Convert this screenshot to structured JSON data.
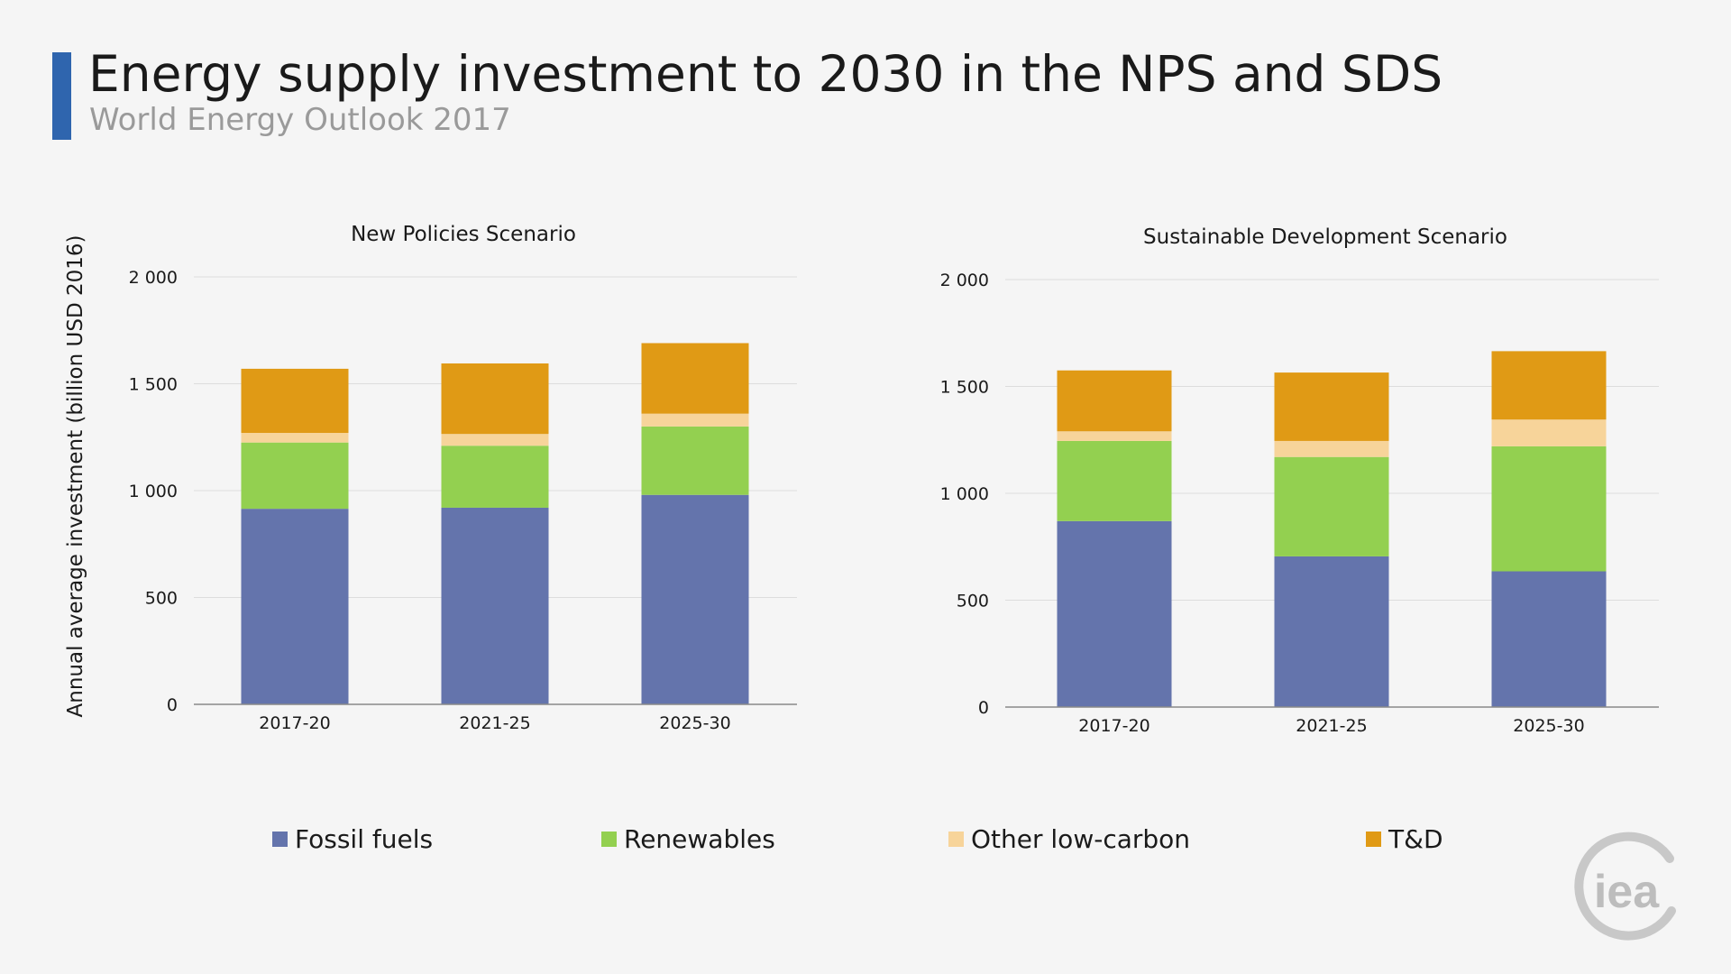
{
  "header": {
    "title": "Energy supply investment to 2030 in the NPS and SDS",
    "subtitle": "World Energy Outlook 2017"
  },
  "ylabel": "Annual average investment (billion USD 2016)",
  "colors": {
    "fossil": "#6474ac",
    "renewables": "#93d050",
    "other": "#f7d49a",
    "td": "#e09a15",
    "accent": "#2f65ae"
  },
  "legend": [
    {
      "label": "Fossil fuels",
      "color": "#6474ac"
    },
    {
      "label": "Renewables",
      "color": "#93d050"
    },
    {
      "label": "Other low-carbon",
      "color": "#f7d49a"
    },
    {
      "label": "T&D",
      "color": "#e09a15"
    }
  ],
  "logo": {
    "text": "iea",
    "icon": "iea-logo-icon"
  },
  "chart_data": [
    {
      "type": "bar",
      "stacked": true,
      "title": "New Policies Scenario",
      "categories": [
        "2017-20",
        "2021-25",
        "2025-30"
      ],
      "ylim": [
        0,
        2000
      ],
      "yticks": [
        0,
        500,
        1000,
        1500,
        2000
      ],
      "ytick_labels": [
        "0",
        "500",
        "1 000",
        "1 500",
        "2 000"
      ],
      "grid": true,
      "series": [
        {
          "name": "Fossil fuels",
          "values": [
            915,
            920,
            980
          ]
        },
        {
          "name": "Renewables",
          "values": [
            310,
            290,
            320
          ]
        },
        {
          "name": "Other low-carbon",
          "values": [
            45,
            55,
            60
          ]
        },
        {
          "name": "T&D",
          "values": [
            300,
            330,
            330
          ]
        }
      ]
    },
    {
      "type": "bar",
      "stacked": true,
      "title": "Sustainable Development Scenario",
      "categories": [
        "2017-20",
        "2021-25",
        "2025-30"
      ],
      "ylim": [
        0,
        2000
      ],
      "yticks": [
        0,
        500,
        1000,
        1500,
        2000
      ],
      "ytick_labels": [
        "0",
        "500",
        "1 000",
        "1 500",
        "2 000"
      ],
      "grid": true,
      "series": [
        {
          "name": "Fossil fuels",
          "values": [
            870,
            705,
            635
          ]
        },
        {
          "name": "Renewables",
          "values": [
            375,
            465,
            585
          ]
        },
        {
          "name": "Other low-carbon",
          "values": [
            45,
            75,
            125
          ]
        },
        {
          "name": "T&D",
          "values": [
            285,
            320,
            320
          ]
        }
      ]
    }
  ]
}
